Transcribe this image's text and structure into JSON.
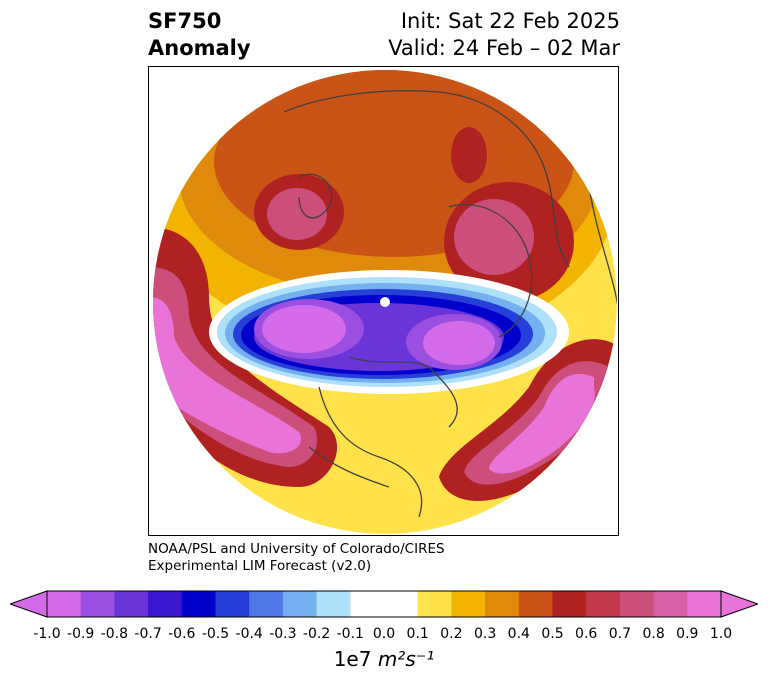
{
  "title": {
    "left_line1": "SF750",
    "left_line2": "Anomaly",
    "right_line1": "Init: Sat 22 Feb 2025",
    "right_line2": "Valid: 24 Feb – 02 Mar"
  },
  "credit": {
    "line1": "NOAA/PSL and University of Colorado/CIRES",
    "line2": "Experimental LIM Forecast (v2.0)"
  },
  "colorbar": {
    "ticks": [
      "-1.0",
      "-0.9",
      "-0.8",
      "-0.7",
      "-0.6",
      "-0.5",
      "-0.4",
      "-0.3",
      "-0.2",
      "-0.1",
      "0.0",
      "0.1",
      "0.2",
      "0.3",
      "0.4",
      "0.5",
      "0.6",
      "0.7",
      "0.8",
      "0.9",
      "1.0"
    ],
    "colors": [
      "#d36be8",
      "#9b4fe0",
      "#6a35d8",
      "#3b16d0",
      "#0000cc",
      "#263fd8",
      "#4f78e6",
      "#74b0ef",
      "#aee0fa",
      "#ffffff",
      "#ffffff",
      "#ffe14a",
      "#f2b400",
      "#e08a0c",
      "#c95416",
      "#b02222",
      "#c23a4c",
      "#cc4e7a",
      "#d862a8",
      "#e874d8"
    ],
    "units_prefix": "1e7",
    "units": "m²s⁻¹"
  },
  "map": {
    "projection": "north-polar-stereographic",
    "colors": {
      "warm_far": "#f2b400",
      "warm_mid": "#e08a0c",
      "warm_core": "#c95416",
      "red": "#b02222",
      "pink": "#cc4e7a",
      "magenta": "#e874d8",
      "violet": "#9b4fe0",
      "purple": "#6a35d8",
      "blue": "#0000cc",
      "light_blue": "#74b0ef",
      "coast": "#404040"
    }
  }
}
